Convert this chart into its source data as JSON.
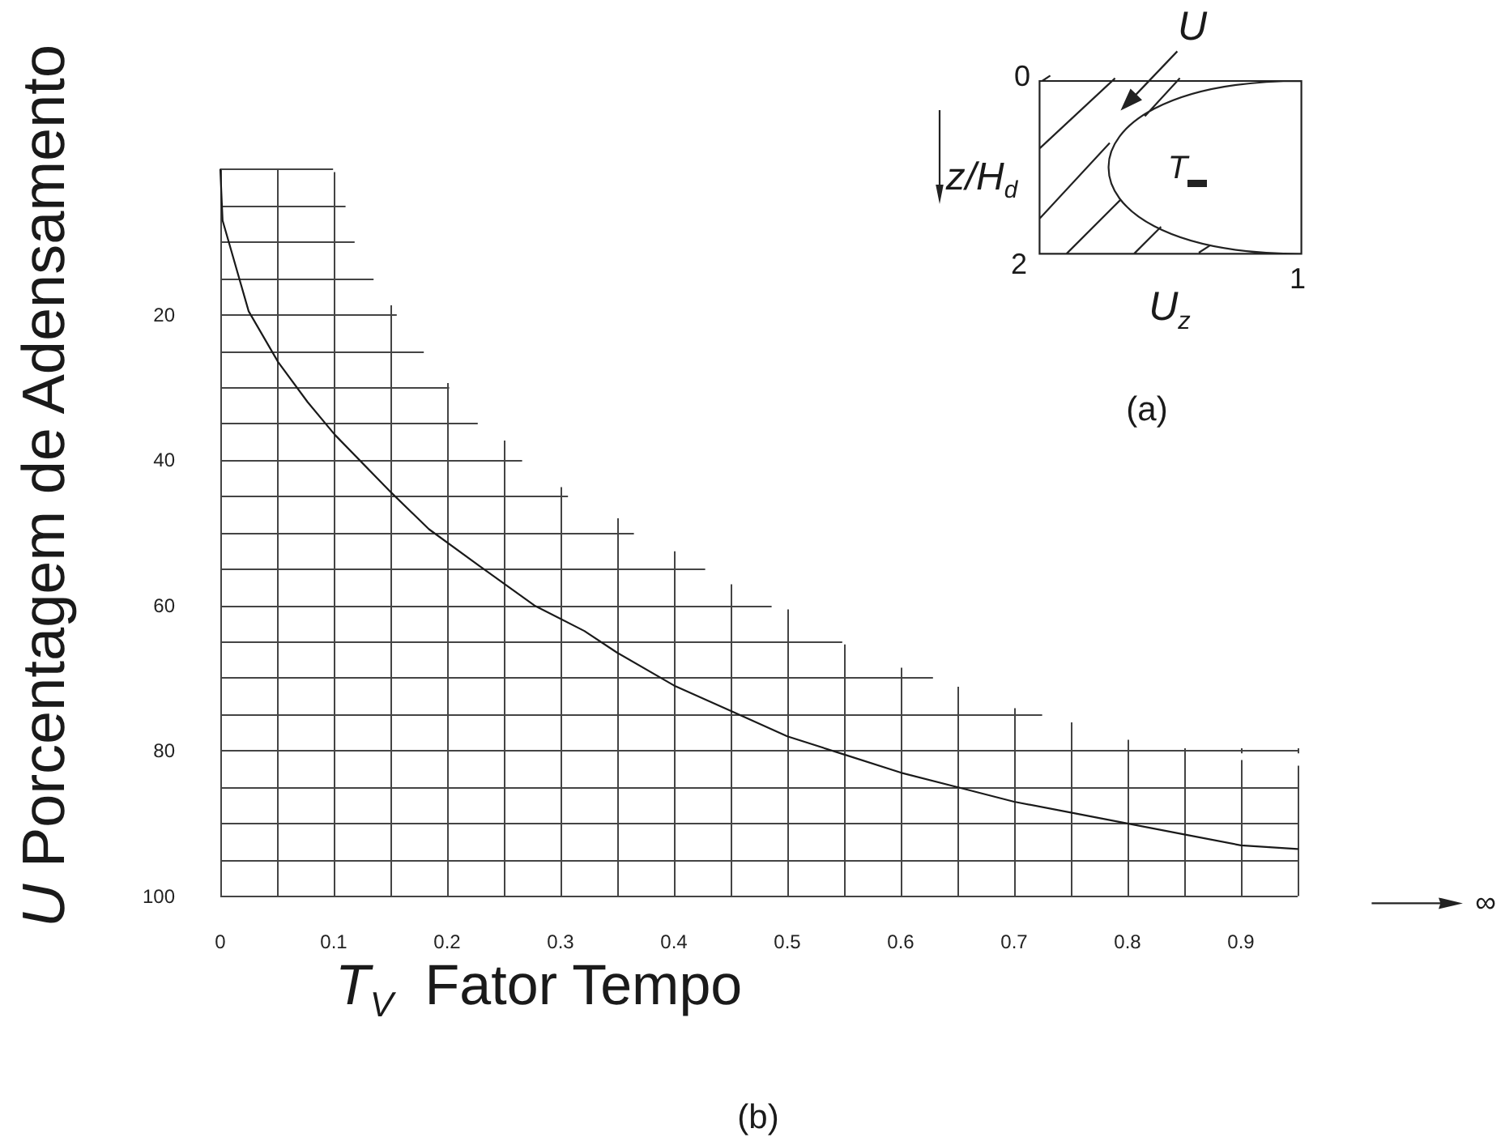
{
  "chart_data": {
    "type": "line",
    "xlabel": "T$_{V}$  Fator Tempo",
    "ylabel": "U Porcentagem de Adensamento",
    "annotations": [
      "U",
      "0",
      "z/H$_{d}$",
      "T",
      "2",
      "1",
      "U$_{z}$",
      "(a)",
      "(b)",
      "∞"
    ],
    "x": [
      0,
      0.002,
      0.025,
      0.051,
      0.077,
      0.101,
      0.151,
      0.184,
      0.228,
      0.277,
      0.321,
      0.35,
      0.4,
      0.45,
      0.5,
      0.55,
      0.6,
      0.65,
      0.7,
      0.75,
      0.8,
      0.85,
      0.9,
      0.95
    ],
    "values": [
      0,
      7,
      19.5,
      26.5,
      32,
      36.5,
      44.5,
      49.5,
      54.5,
      60,
      63.5,
      66.5,
      71,
      74.5,
      78,
      80.5,
      83,
      85,
      87,
      88.5,
      90,
      91.5,
      93,
      93.5
    ],
    "color": "#1a1a1a",
    "xlim": [
      0,
      0.95
    ],
    "xticks": [
      0,
      {
        "value": 0.05,
        "label": null
      },
      0.1,
      {
        "value": 0.15,
        "label": null
      },
      0.2,
      {
        "value": 0.25,
        "label": null
      },
      0.3,
      {
        "value": 0.35,
        "label": null
      },
      0.4,
      {
        "value": 0.45,
        "label": null
      },
      0.5,
      {
        "value": 0.55,
        "label": null
      },
      0.6,
      {
        "value": 0.65,
        "label": null
      },
      0.7,
      {
        "value": 0.75,
        "label": null
      },
      0.8,
      {
        "value": 0.85,
        "label": null
      },
      0.9,
      {
        "value": 0.95,
        "label": null
      }
    ],
    "ylim": [
      100,
      0
    ],
    "yticks": [
      {
        "value": 0,
        "label": null
      },
      {
        "value": 5,
        "label": null
      },
      {
        "value": 10,
        "label": null
      },
      {
        "value": 15,
        "label": null
      },
      20,
      {
        "value": 25,
        "label": null
      },
      {
        "value": 30,
        "label": null
      },
      {
        "value": 35,
        "label": null
      },
      40,
      {
        "value": 45,
        "label": null
      },
      {
        "value": 50,
        "label": null
      },
      {
        "value": 55,
        "label": null
      },
      60,
      {
        "value": 65,
        "label": null
      },
      {
        "value": 70,
        "label": null
      },
      {
        "value": 75,
        "label": null
      },
      80,
      {
        "value": 85,
        "label": null
      },
      {
        "value": 90,
        "label": null
      },
      {
        "value": 95,
        "label": null
      },
      100
    ],
    "grid": true
  }
}
